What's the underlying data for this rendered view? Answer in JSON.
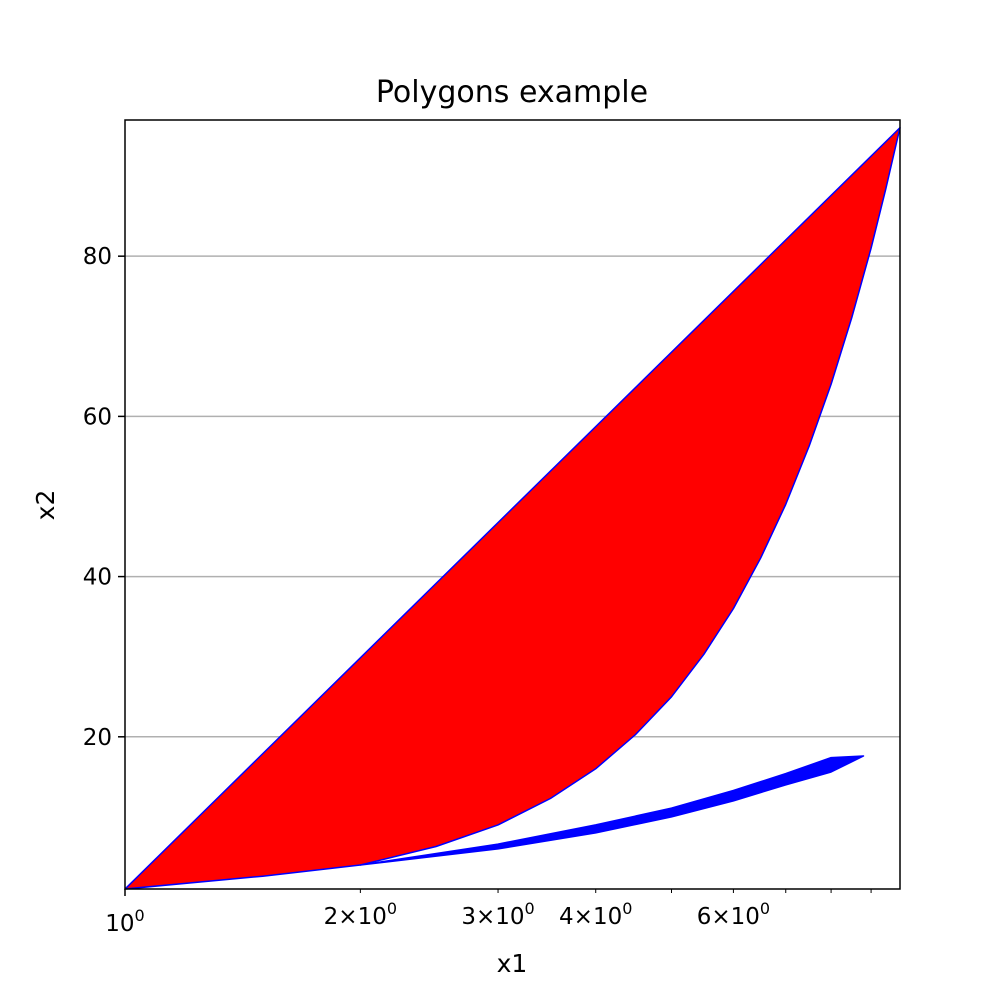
{
  "chart_data": {
    "type": "area",
    "title": "Polygons example",
    "xlabel": "x1",
    "ylabel": "x2",
    "xscale": "log",
    "xlim": [
      1,
      9.8
    ],
    "ylim": [
      1,
      97
    ],
    "grid": "y-major",
    "x_major_ticks": [
      {
        "value": 1,
        "base": "10",
        "exp": "0"
      }
    ],
    "x_minor_ticks": [
      {
        "value": 2,
        "mant": "2",
        "base": "10",
        "exp": "0"
      },
      {
        "value": 3,
        "mant": "3",
        "base": "10",
        "exp": "0"
      },
      {
        "value": 4,
        "mant": "4",
        "base": "10",
        "exp": "0"
      },
      {
        "value": 6,
        "mant": "6",
        "base": "10",
        "exp": "0"
      },
      {
        "value": 5,
        "mant": "",
        "base": "",
        "exp": ""
      },
      {
        "value": 7,
        "mant": "",
        "base": "",
        "exp": ""
      },
      {
        "value": 8,
        "mant": "",
        "base": "",
        "exp": ""
      },
      {
        "value": 9,
        "mant": "",
        "base": "",
        "exp": ""
      }
    ],
    "y_ticks": [
      20,
      40,
      60,
      80
    ],
    "polygons": [
      {
        "fill": "#ff0000",
        "edge": "#0000ff",
        "upper": [
          [
            1,
            1
          ],
          [
            9.8,
            96.04
          ]
        ],
        "lower": [
          [
            1.0,
            1.0
          ],
          [
            1.5,
            2.6
          ],
          [
            2.0,
            4.0
          ],
          [
            2.5,
            6.3
          ],
          [
            3.0,
            9.0
          ],
          [
            3.5,
            12.3
          ],
          [
            4.0,
            16.0
          ],
          [
            4.5,
            20.3
          ],
          [
            5.0,
            25.0
          ],
          [
            5.5,
            30.3
          ],
          [
            6.0,
            36.0
          ],
          [
            6.5,
            42.3
          ],
          [
            7.0,
            49.0
          ],
          [
            7.5,
            56.3
          ],
          [
            8.0,
            64.0
          ],
          [
            8.5,
            72.3
          ],
          [
            9.0,
            81.0
          ],
          [
            9.4,
            88.4
          ],
          [
            9.8,
            96.04
          ]
        ]
      },
      {
        "fill": "#0000ff",
        "edge": "#0000ff",
        "upper": [
          [
            2.0,
            4.0
          ],
          [
            3.0,
            6.6
          ],
          [
            4.0,
            9.0
          ],
          [
            5.0,
            11.1
          ],
          [
            6.0,
            13.3
          ],
          [
            7.0,
            15.4
          ],
          [
            8.0,
            17.4
          ],
          [
            8.8,
            17.6
          ]
        ],
        "lower": [
          [
            2.0,
            4.0
          ],
          [
            3.0,
            6.0
          ],
          [
            4.0,
            8.0
          ],
          [
            5.0,
            10.0
          ],
          [
            6.0,
            12.0
          ],
          [
            7.0,
            14.0
          ],
          [
            8.0,
            15.6
          ],
          [
            8.8,
            17.6
          ]
        ]
      }
    ]
  }
}
